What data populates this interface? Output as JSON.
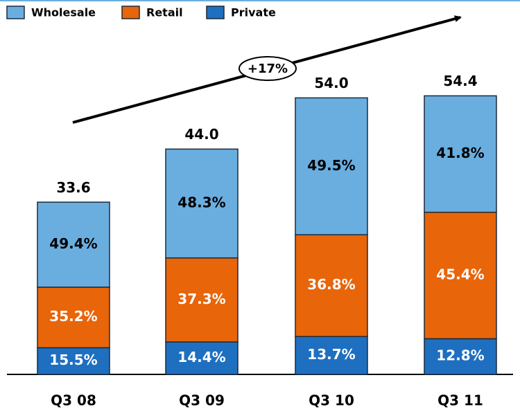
{
  "chart_data": {
    "type": "stacked_bar",
    "categories": [
      "Q3 08",
      "Q3 09",
      "Q3 10",
      "Q3 11"
    ],
    "values": [
      33.6,
      44,
      54,
      54.4
    ],
    "value_labels": [
      "33.6",
      "44.0",
      "54.0",
      "54.4"
    ],
    "series": [
      {
        "name": "Wholesale",
        "color": "#6aaee0",
        "values": [
          49.4,
          48.3,
          49.5,
          41.8
        ],
        "value_labels": [
          "49.4%",
          "48.3%",
          "49.5%",
          "41.8%"
        ]
      },
      {
        "name": "Retail",
        "color": "#e8650a",
        "values": [
          35.2,
          37.3,
          36.8,
          45.4
        ],
        "value_labels": [
          "35.2%",
          "37.3%",
          "36.8%",
          "45.4%"
        ]
      },
      {
        "name": "Private",
        "color": "#1f6fc0",
        "values": [
          15.5,
          14.4,
          13.7,
          12.8
        ],
        "value_labels": [
          "15.5%",
          "14.4%",
          "13.7%",
          "12.8%"
        ]
      }
    ],
    "annotation": "+17%",
    "legend": "top-left"
  }
}
